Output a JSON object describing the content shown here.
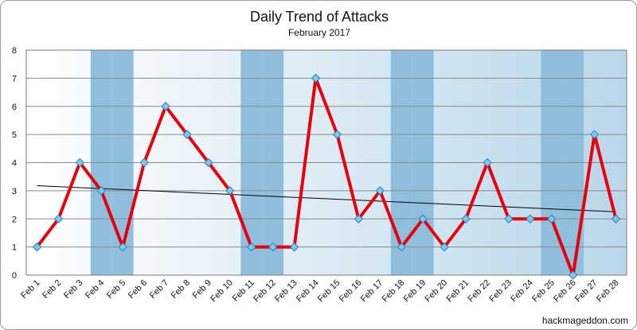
{
  "chart_data": {
    "type": "line",
    "title": "Daily Trend of Attacks",
    "subtitle": "February 2017",
    "categories": [
      "Feb 1",
      "Feb 2",
      "Feb 3",
      "Feb 4",
      "Feb 5",
      "Feb 6",
      "Feb 7",
      "Feb 8",
      "Feb 9",
      "Feb 10",
      "Feb 11",
      "Feb 12",
      "Feb 13",
      "Feb 14",
      "Feb 15",
      "Feb 16",
      "Feb 17",
      "Feb 18",
      "Feb 19",
      "Feb 20",
      "Feb 21",
      "Feb 22",
      "Feb 23",
      "Feb 24",
      "Feb 25",
      "Feb 26",
      "Feb 27",
      "Feb 28"
    ],
    "series": [
      {
        "name": "Attacks",
        "values": [
          1,
          2,
          4,
          3,
          1,
          4,
          6,
          5,
          4,
          3,
          1,
          1,
          1,
          7,
          5,
          2,
          3,
          1,
          2,
          1,
          2,
          4,
          2,
          2,
          2,
          0,
          5,
          2
        ]
      }
    ],
    "trendline": {
      "type": "linear",
      "start": 3.18,
      "end": 2.25
    },
    "shaded_weekend_categories": [
      "Feb 4",
      "Feb 5",
      "Feb 11",
      "Feb 12",
      "Feb 18",
      "Feb 19",
      "Feb 25",
      "Feb 26"
    ],
    "ylim": [
      0,
      8
    ],
    "yticks": [
      0,
      1,
      2,
      3,
      4,
      5,
      6,
      7,
      8
    ],
    "xlabel": "",
    "ylabel": "",
    "grid": true,
    "legend": "none",
    "credit": "hackmageddon.com",
    "colors": {
      "line": "#e8000b",
      "marker": "#7ec8ee",
      "marker_edge": "#2f7fb4",
      "weekend": "#8fbfdd",
      "trend": "#000000",
      "grid": "#8a8a8a",
      "bg_light": "#ffffff",
      "bg_dark": "#b9d7e9"
    }
  }
}
